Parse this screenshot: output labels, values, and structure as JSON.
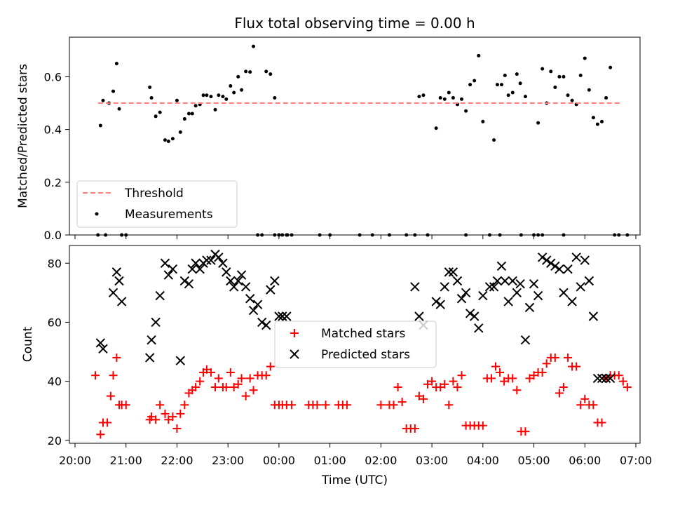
{
  "chart_data": [
    {
      "type": "scatter",
      "title": "Flux total observing time = 0.00 h",
      "xlabel": "",
      "ylabel": "Matched/Predicted stars",
      "ylim": [
        0,
        0.75
      ],
      "xlim": [
        "20:00",
        "07:00"
      ],
      "yticks": [
        "0.0",
        "0.2",
        "0.4",
        "0.6"
      ],
      "grid": false,
      "legend_position": "lower-left",
      "threshold": {
        "name": "Threshold",
        "value": 0.5,
        "x": [
          "20:27",
          "06:42"
        ],
        "color": "#ff7f7f"
      },
      "series": [
        {
          "name": "Measurements",
          "x": [
            "20:27",
            "20:30",
            "20:33",
            "20:36",
            "20:40",
            "20:45",
            "20:49",
            "20:52",
            "20:55",
            "21:00",
            "21:28",
            "21:30",
            "21:35",
            "21:40",
            "21:46",
            "21:50",
            "21:55",
            "22:00",
            "22:04",
            "22:09",
            "22:14",
            "22:18",
            "22:22",
            "22:27",
            "22:31",
            "22:35",
            "22:40",
            "22:45",
            "22:49",
            "22:54",
            "22:58",
            "23:03",
            "23:07",
            "23:12",
            "23:16",
            "23:21",
            "23:26",
            "23:30",
            "23:35",
            "23:40",
            "23:45",
            "23:50",
            "23:55",
            "00:00",
            "00:04",
            "00:09",
            "00:15",
            "02:40",
            "02:45",
            "02:50",
            "03:05",
            "03:10",
            "03:15",
            "03:20",
            "03:25",
            "03:30",
            "03:35",
            "03:40",
            "03:45",
            "03:50",
            "03:55",
            "04:00",
            "04:08",
            "04:13",
            "04:17",
            "04:22",
            "04:26",
            "04:30",
            "04:35",
            "04:40",
            "04:44",
            "04:50",
            "05:00",
            "05:05",
            "05:10",
            "05:15",
            "05:20",
            "05:25",
            "05:30",
            "05:35",
            "05:40",
            "05:45",
            "05:50",
            "05:55",
            "06:00",
            "06:05",
            "06:10",
            "06:15",
            "06:20",
            "06:25",
            "06:30",
            "06:35",
            "06:40",
            "20:55",
            "00:48",
            "01:00",
            "01:35",
            "01:50",
            "02:10",
            "02:30",
            "02:55",
            "03:40",
            "04:20",
            "04:45",
            "05:35",
            "06:50",
            "00:00",
            "00:10",
            "23:55",
            "05:05",
            "05:10"
          ],
          "y": [
            0.0,
            0.415,
            0.51,
            0.0,
            0.5,
            0.545,
            0.65,
            0.478,
            0.0,
            0.0,
            0.56,
            0.52,
            0.45,
            0.465,
            0.36,
            0.355,
            0.365,
            0.51,
            0.39,
            0.44,
            0.46,
            0.46,
            0.49,
            0.495,
            0.53,
            0.53,
            0.525,
            0.475,
            0.53,
            0.525,
            0.515,
            0.565,
            0.54,
            0.6,
            0.55,
            0.62,
            0.618,
            0.715,
            0.0,
            0.0,
            0.62,
            0.61,
            0.52,
            0.0,
            0.0,
            0.0,
            0.0,
            0.0,
            0.525,
            0.53,
            0.405,
            0.52,
            0.515,
            0.54,
            0.52,
            0.495,
            0.515,
            0.47,
            0.57,
            0.585,
            0.68,
            0.43,
            0.0,
            0.36,
            0.57,
            0.57,
            0.605,
            0.53,
            0.54,
            0.61,
            0.575,
            0.525,
            0.0,
            0.425,
            0.63,
            0.5,
            0.62,
            0.56,
            0.6,
            0.6,
            0.53,
            0.51,
            0.495,
            0.605,
            0.67,
            0.55,
            0.445,
            0.42,
            0.43,
            0.52,
            0.635,
            0.0,
            0.0,
            0.0,
            0.0,
            0.0,
            0.0,
            0.0,
            0.0,
            0.0,
            0.0,
            0.0,
            0.0,
            0.0,
            0.0,
            0.0,
            0.0,
            0.0,
            0.0,
            0.0,
            0.0
          ]
        }
      ]
    },
    {
      "type": "scatter",
      "title": "",
      "xlabel": "Time (UTC)",
      "ylabel": "Count",
      "ylim": [
        19,
        86
      ],
      "xlim": [
        "20:00",
        "07:00"
      ],
      "yticks": [
        "20",
        "40",
        "60",
        "80"
      ],
      "xticks": [
        "20:00",
        "21:00",
        "22:00",
        "23:00",
        "00:00",
        "01:00",
        "02:00",
        "03:00",
        "04:00",
        "05:00",
        "06:00",
        "07:00"
      ],
      "grid": false,
      "legend_position": "center",
      "series": [
        {
          "name": "Matched stars",
          "color": "#ff0000",
          "x": [
            "20:24",
            "20:30",
            "20:33",
            "20:38",
            "20:42",
            "20:45",
            "20:49",
            "20:52",
            "20:55",
            "21:00",
            "21:28",
            "21:30",
            "21:35",
            "21:40",
            "21:46",
            "21:50",
            "21:55",
            "22:00",
            "22:04",
            "22:09",
            "22:14",
            "22:18",
            "22:22",
            "22:27",
            "22:31",
            "22:35",
            "22:40",
            "22:45",
            "22:49",
            "22:54",
            "22:58",
            "23:03",
            "23:07",
            "23:12",
            "23:16",
            "23:21",
            "23:26",
            "23:30",
            "23:35",
            "23:40",
            "23:45",
            "23:50",
            "23:55",
            "00:00",
            "00:04",
            "00:09",
            "00:15",
            "00:35",
            "00:40",
            "00:45",
            "00:55",
            "01:10",
            "01:15",
            "01:20",
            "02:00",
            "02:10",
            "02:15",
            "02:20",
            "02:25",
            "02:30",
            "02:35",
            "02:40",
            "02:45",
            "02:50",
            "02:55",
            "03:00",
            "03:05",
            "03:10",
            "03:15",
            "03:20",
            "03:25",
            "03:30",
            "03:35",
            "03:40",
            "03:45",
            "03:50",
            "03:55",
            "04:00",
            "04:05",
            "04:10",
            "04:15",
            "04:20",
            "04:25",
            "04:30",
            "04:35",
            "04:40",
            "04:45",
            "04:50",
            "04:55",
            "05:00",
            "05:05",
            "05:10",
            "05:15",
            "05:20",
            "05:25",
            "05:30",
            "05:35",
            "05:40",
            "05:45",
            "05:50",
            "05:55",
            "06:00",
            "06:05",
            "06:10",
            "06:15",
            "06:20",
            "06:25",
            "06:30",
            "06:35",
            "06:40",
            "06:45",
            "06:50"
          ],
          "y": [
            42,
            22,
            26,
            26,
            35,
            42,
            48,
            32,
            32,
            32,
            27,
            28,
            27,
            32,
            29,
            27,
            28,
            24,
            29,
            32,
            36,
            37,
            38,
            40,
            43,
            44,
            43,
            38,
            41,
            38,
            38,
            43,
            38,
            39,
            41,
            35,
            41,
            37,
            42,
            42,
            42,
            45,
            32,
            32,
            32,
            32,
            32,
            32,
            32,
            32,
            32,
            32,
            32,
            32,
            32,
            32,
            32,
            38,
            33,
            24,
            24,
            24,
            35,
            34,
            39,
            40,
            38,
            38,
            39,
            32,
            40,
            38,
            42,
            25,
            25,
            25,
            25,
            25,
            41,
            41,
            45,
            43,
            40,
            41,
            41,
            37,
            23,
            23,
            41,
            42,
            43,
            43,
            46,
            48,
            48,
            36,
            38,
            48,
            45,
            45,
            32,
            34,
            32,
            32,
            26,
            26,
            41,
            42,
            42,
            42,
            40,
            38
          ]
        },
        {
          "name": "Predicted stars",
          "color": "#000000",
          "x": [
            "20:30",
            "20:33",
            "20:45",
            "20:49",
            "20:52",
            "20:55",
            "21:28",
            "21:30",
            "21:35",
            "21:40",
            "21:46",
            "21:50",
            "21:55",
            "22:04",
            "22:09",
            "22:14",
            "22:18",
            "22:22",
            "22:27",
            "22:31",
            "22:35",
            "22:40",
            "22:45",
            "22:49",
            "22:54",
            "22:58",
            "23:03",
            "23:07",
            "23:12",
            "23:16",
            "23:21",
            "23:26",
            "23:30",
            "23:35",
            "23:40",
            "23:45",
            "23:50",
            "23:55",
            "00:00",
            "00:04",
            "00:09",
            "02:40",
            "02:45",
            "02:50",
            "03:05",
            "03:10",
            "03:15",
            "03:20",
            "03:25",
            "03:30",
            "03:35",
            "03:40",
            "03:45",
            "03:50",
            "03:55",
            "04:00",
            "04:08",
            "04:13",
            "04:17",
            "04:22",
            "04:26",
            "04:30",
            "04:35",
            "04:40",
            "04:44",
            "04:50",
            "04:55",
            "05:00",
            "05:05",
            "05:10",
            "05:15",
            "05:20",
            "05:25",
            "05:30",
            "05:35",
            "05:40",
            "05:45",
            "05:50",
            "05:55",
            "06:00",
            "06:05",
            "06:10",
            "06:15",
            "06:20",
            "06:25",
            "06:30"
          ],
          "y": [
            53,
            51,
            70,
            77,
            74,
            67,
            48,
            54,
            60,
            69,
            80,
            76,
            78,
            47,
            74,
            73,
            78,
            80,
            78,
            80,
            81,
            81,
            83,
            82,
            80,
            77,
            74,
            72,
            74,
            76,
            72,
            68,
            64,
            66,
            60,
            59,
            71,
            74,
            62,
            62,
            62,
            72,
            62,
            59,
            67,
            66,
            72,
            77,
            77,
            74,
            68,
            70,
            63,
            62,
            58,
            69,
            72,
            72,
            74,
            79,
            74,
            67,
            74,
            70,
            73,
            54,
            65,
            73,
            69,
            82,
            81,
            80,
            79,
            78,
            70,
            78,
            67,
            82,
            72,
            81,
            74,
            62,
            41,
            41,
            41,
            41
          ]
        }
      ]
    }
  ]
}
